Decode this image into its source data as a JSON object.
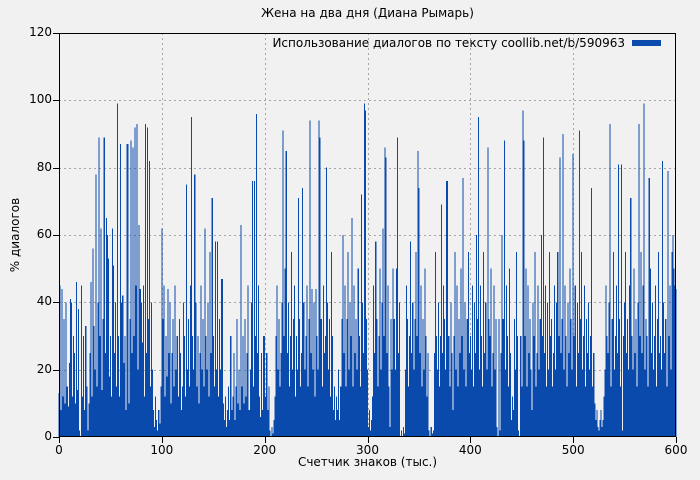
{
  "chart_data": {
    "type": "bar",
    "title": "Жена на два дня (Диана Рымарь)",
    "xlabel": "Счетчик знаков (тыс.)",
    "ylabel": "% диалогов",
    "legend": [
      "Использование диалогов по тексту coollib.net/b/590963"
    ],
    "legend_position": "top-right-inside",
    "grid": "dashed",
    "xlim": [
      0,
      600
    ],
    "ylim": [
      0,
      120
    ],
    "xticks": [
      0,
      100,
      200,
      300,
      400,
      500,
      600
    ],
    "yticks": [
      0,
      20,
      40,
      60,
      80,
      100,
      120
    ],
    "bar_color": "#0b4aad",
    "background": "#f1f1f1",
    "grid_color": "#a6a6a6",
    "frame_color": "#000000",
    "x_start": 0,
    "x_step": 1,
    "values": [
      13,
      45,
      8,
      44,
      12,
      35,
      10,
      40,
      15,
      9,
      22,
      41,
      40,
      12,
      30,
      25,
      10,
      46,
      14,
      38,
      2,
      0,
      45,
      12,
      30,
      8,
      33,
      15,
      2,
      10,
      25,
      46,
      12,
      56,
      33,
      20,
      78,
      15,
      40,
      89,
      30,
      62,
      14,
      35,
      89,
      25,
      65,
      60,
      53,
      18,
      30,
      12,
      62,
      51,
      25,
      40,
      15,
      99,
      30,
      12,
      87,
      40,
      42,
      22,
      30,
      8,
      87,
      87,
      10,
      35,
      88,
      25,
      86,
      30,
      92,
      45,
      93,
      20,
      63,
      44,
      40,
      28,
      45,
      12,
      93,
      25,
      92,
      35,
      82,
      15,
      40,
      20,
      8,
      3,
      12,
      5,
      2,
      8,
      4,
      15,
      62,
      35,
      45,
      12,
      30,
      18,
      44,
      25,
      40,
      10,
      25,
      35,
      15,
      45,
      20,
      30,
      12,
      35,
      25,
      8,
      15,
      40,
      30,
      12,
      75,
      20,
      35,
      15,
      45,
      95,
      30,
      20,
      78,
      40,
      15,
      30,
      10,
      25,
      45,
      20,
      35,
      15,
      62,
      30,
      20,
      40,
      12,
      55,
      25,
      71,
      30,
      15,
      58,
      20,
      58,
      12,
      35,
      20,
      47,
      47,
      10,
      5,
      12,
      3,
      8,
      15,
      5,
      30,
      8,
      12,
      25,
      5,
      15,
      35,
      10,
      20,
      8,
      63,
      15,
      30,
      10,
      35,
      12,
      25,
      45,
      8,
      20,
      40,
      76,
      15,
      76,
      30,
      96,
      25,
      45,
      12,
      6,
      25,
      8,
      30,
      30,
      12,
      25,
      8,
      15,
      2,
      0,
      3,
      1,
      5,
      12,
      30,
      45,
      20,
      35,
      15,
      25,
      40,
      91,
      30,
      50,
      85,
      25,
      40,
      15,
      30,
      55,
      20,
      35,
      45,
      12,
      30,
      20,
      71,
      35,
      15,
      25,
      74,
      40,
      20,
      30,
      45,
      15,
      35,
      94,
      25,
      44,
      20,
      40,
      12,
      44,
      30,
      20,
      94,
      89,
      35,
      15,
      45,
      25,
      30,
      80,
      40,
      20,
      35,
      12,
      55,
      30,
      8,
      15,
      5,
      12,
      8,
      20,
      5,
      15,
      35,
      60,
      25,
      45,
      15,
      35,
      55,
      20,
      40,
      30,
      65,
      15,
      45,
      25,
      35,
      20,
      50,
      30,
      15,
      72,
      40,
      25,
      99,
      97,
      35,
      20,
      3,
      8,
      2,
      5,
      12,
      45,
      25,
      58,
      35,
      15,
      30,
      50,
      20,
      40,
      62,
      30,
      86,
      83,
      25,
      45,
      15,
      3,
      35,
      20,
      50,
      35,
      20,
      50,
      89,
      25,
      40,
      0,
      2,
      0,
      3,
      1,
      20,
      45,
      35,
      15,
      30,
      58,
      25,
      40,
      20,
      35,
      55,
      30,
      85,
      74,
      25,
      45,
      15,
      35,
      20,
      50,
      30,
      12,
      25,
      2,
      0,
      3,
      1,
      2,
      25,
      55,
      30,
      20,
      40,
      15,
      30,
      69,
      25,
      45,
      35,
      20,
      76,
      76,
      30,
      15,
      40,
      25,
      8,
      30,
      55,
      20,
      45,
      15,
      35,
      25,
      50,
      30,
      77,
      20,
      40,
      15,
      35,
      55,
      25,
      30,
      20,
      45,
      15,
      40,
      25,
      60,
      35,
      95,
      20,
      45,
      30,
      15,
      55,
      25,
      40,
      20,
      86,
      35,
      30,
      50,
      15,
      25,
      45,
      20,
      35,
      3,
      0,
      35,
      2,
      25,
      60,
      35,
      88,
      20,
      45,
      30,
      15,
      50,
      25,
      5,
      12,
      8,
      35,
      20,
      55,
      30,
      2,
      0,
      30,
      15,
      97,
      88,
      30,
      50,
      15,
      45,
      25,
      35,
      20,
      8,
      40,
      30,
      55,
      15,
      25,
      45,
      20,
      35,
      60,
      30,
      89,
      25,
      45,
      15,
      40,
      20,
      55,
      30,
      35,
      15,
      25,
      45,
      20,
      40,
      55,
      30,
      83,
      25,
      35,
      90,
      20,
      45,
      30,
      15,
      40,
      25,
      50,
      35,
      20,
      84,
      30,
      45,
      15,
      40,
      25,
      91,
      35,
      55,
      20,
      30,
      45,
      15,
      35,
      25,
      40,
      20,
      30,
      74,
      15,
      25,
      10,
      5,
      8,
      3,
      2,
      5,
      8,
      3,
      5,
      12,
      20,
      45,
      30,
      25,
      40,
      93,
      15,
      35,
      55,
      20,
      30,
      45,
      25,
      81,
      35,
      15,
      81,
      2,
      30,
      40,
      55,
      25,
      35,
      20,
      45,
      71,
      30,
      20,
      50,
      25,
      35,
      15,
      40,
      93,
      30,
      55,
      25,
      45,
      99,
      20,
      35,
      30,
      15,
      77,
      50,
      25,
      40,
      20,
      30,
      45,
      15,
      35,
      55,
      25,
      30,
      20,
      82,
      40,
      25,
      35,
      15,
      79,
      30,
      45,
      20,
      55,
      60,
      50,
      45,
      44
    ]
  }
}
